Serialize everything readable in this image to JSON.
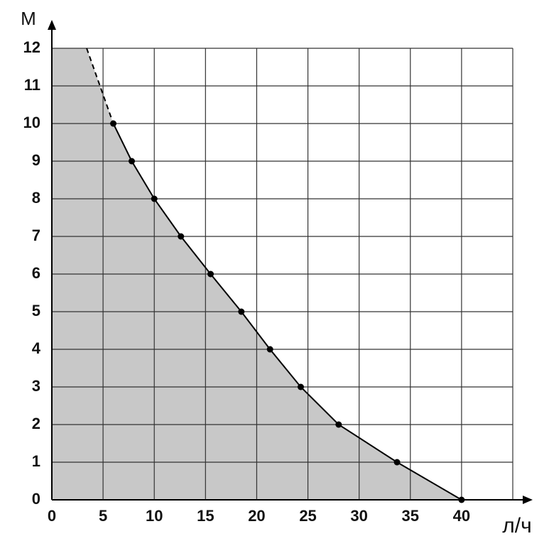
{
  "chart_data": {
    "type": "line",
    "x_label": "л/ч",
    "y_label": "М",
    "xlim": [
      0,
      45
    ],
    "ylim": [
      0,
      12
    ],
    "xticks": [
      0,
      5,
      10,
      15,
      20,
      25,
      30,
      35,
      40
    ],
    "yticks": [
      0,
      1,
      2,
      3,
      4,
      5,
      6,
      7,
      8,
      9,
      10,
      11,
      12
    ],
    "grid": true,
    "fill_area": true,
    "fill_color": "#c8c8c8",
    "series": [
      {
        "color": "#000000",
        "markers": true,
        "dash": false,
        "x": [
          6,
          7.8,
          10,
          12.6,
          15.5,
          18.5,
          21.3,
          24.3,
          28,
          33.7,
          40
        ],
        "values": [
          10,
          9,
          8,
          7,
          6,
          5,
          4,
          3,
          2,
          1,
          0
        ]
      },
      {
        "color": "#000000",
        "markers": false,
        "dash": true,
        "x": [
          3.4,
          6
        ],
        "values": [
          12,
          10
        ]
      }
    ]
  }
}
